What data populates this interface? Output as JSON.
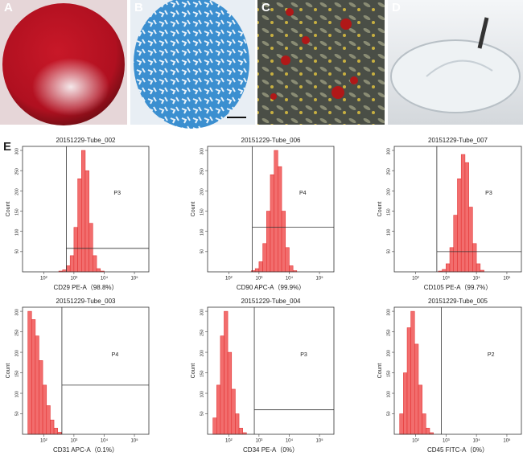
{
  "panels": [
    "A",
    "B",
    "C",
    "D",
    "E"
  ],
  "chart_data": [
    {
      "type": "histogram",
      "title": "20151229-Tube_002",
      "xlabel": "CD29 PE-A（98.8%）",
      "ylabel": "Count",
      "color": "#f26d6d",
      "log_x": true,
      "xlim": [
        20,
        300000
      ],
      "xticks": [
        {
          "value": 100,
          "label": "10²"
        },
        {
          "value": 1000,
          "label": "10³"
        },
        {
          "value": 10000,
          "label": "10⁴"
        },
        {
          "value": 100000,
          "label": "10⁵"
        }
      ],
      "ylim": [
        0,
        310
      ],
      "yticks": [
        50,
        100,
        150,
        200,
        250,
        300
      ],
      "bins": [
        316,
        422,
        562,
        750,
        1000,
        1334,
        1778,
        2371,
        3162,
        4217,
        5623,
        7499,
        10000
      ],
      "values": [
        2,
        5,
        15,
        40,
        110,
        230,
        300,
        250,
        120,
        40,
        8,
        2
      ],
      "gate": {
        "label": "P3",
        "x": 560,
        "y": 58
      }
    },
    {
      "type": "histogram",
      "title": "20151229-Tube_006",
      "xlabel": "CD90 APC-A（99.9%）",
      "ylabel": "Count",
      "color": "#f26d6d",
      "log_x": true,
      "xlim": [
        20,
        300000
      ],
      "xticks": [
        {
          "value": 100,
          "label": "10²"
        },
        {
          "value": 1000,
          "label": "10³"
        },
        {
          "value": 10000,
          "label": "10⁴"
        },
        {
          "value": 100000,
          "label": "10⁵"
        }
      ],
      "ylim": [
        0,
        310
      ],
      "yticks": [
        50,
        100,
        150,
        200,
        250,
        300
      ],
      "bins": [
        562,
        750,
        1000,
        1334,
        1778,
        2371,
        3162,
        4217,
        5623,
        7499,
        10000,
        13335,
        17783
      ],
      "values": [
        3,
        8,
        25,
        70,
        150,
        240,
        300,
        260,
        150,
        60,
        15,
        3
      ],
      "gate": {
        "label": "P4",
        "x": 600,
        "y": 110
      }
    },
    {
      "type": "histogram",
      "title": "20151229-Tube_007",
      "xlabel": "CD105 PE-A（99.7%）",
      "ylabel": "Count",
      "color": "#f26d6d",
      "log_x": true,
      "xlim": [
        20,
        300000
      ],
      "xticks": [
        {
          "value": 100,
          "label": "10²"
        },
        {
          "value": 1000,
          "label": "10³"
        },
        {
          "value": 10000,
          "label": "10⁴"
        },
        {
          "value": 100000,
          "label": "10⁵"
        }
      ],
      "ylim": [
        0,
        310
      ],
      "yticks": [
        50,
        100,
        150,
        200,
        250,
        300
      ],
      "bins": [
        562,
        750,
        1000,
        1334,
        1778,
        2371,
        3162,
        4217,
        5623,
        7499,
        10000,
        13335,
        17783
      ],
      "values": [
        2,
        6,
        20,
        60,
        140,
        230,
        290,
        270,
        160,
        70,
        20,
        4
      ],
      "gate": {
        "label": "P3",
        "x": 500,
        "y": 50
      }
    },
    {
      "type": "histogram",
      "title": "20151229-Tube_003",
      "xlabel": "CD31 APC-A（0.1%）",
      "ylabel": "Count",
      "color": "#f26d6d",
      "log_x": true,
      "xlim": [
        20,
        300000
      ],
      "xticks": [
        {
          "value": 100,
          "label": "10²"
        },
        {
          "value": 1000,
          "label": "10³"
        },
        {
          "value": 10000,
          "label": "10⁴"
        },
        {
          "value": 100000,
          "label": "10⁵"
        }
      ],
      "ylim": [
        0,
        310
      ],
      "yticks": [
        50,
        100,
        150,
        200,
        250,
        300
      ],
      "bins": [
        30,
        40,
        53,
        70,
        93,
        124,
        165,
        219,
        291,
        387
      ],
      "values": [
        300,
        280,
        240,
        180,
        120,
        70,
        35,
        15,
        5
      ],
      "gate": {
        "label": "P4",
        "x": 400,
        "y": 120
      }
    },
    {
      "type": "histogram",
      "title": "20151229-Tube_004",
      "xlabel": "CD34 PE-A（0%）",
      "ylabel": "Count",
      "color": "#f26d6d",
      "log_x": true,
      "xlim": [
        20,
        300000
      ],
      "xticks": [
        {
          "value": 100,
          "label": "10²"
        },
        {
          "value": 1000,
          "label": "10³"
        },
        {
          "value": 10000,
          "label": "10⁴"
        },
        {
          "value": 100000,
          "label": "10⁵"
        }
      ],
      "ylim": [
        0,
        310
      ],
      "yticks": [
        50,
        100,
        150,
        200,
        250,
        300
      ],
      "bins": [
        30,
        40,
        53,
        70,
        93,
        124,
        165,
        219,
        291,
        387
      ],
      "values": [
        40,
        120,
        240,
        300,
        200,
        110,
        50,
        15,
        4
      ],
      "gate": {
        "label": "P3",
        "x": 700,
        "y": 60
      }
    },
    {
      "type": "histogram",
      "title": "20151229-Tube_005",
      "xlabel": "CD45 FITC-A（0%）",
      "ylabel": "Count",
      "color": "#f26d6d",
      "log_x": true,
      "xlim": [
        20,
        300000
      ],
      "xticks": [
        {
          "value": 100,
          "label": "10²"
        },
        {
          "value": 1000,
          "label": "10³"
        },
        {
          "value": 10000,
          "label": "10⁴"
        },
        {
          "value": 100000,
          "label": "10⁵"
        }
      ],
      "ylim": [
        0,
        310
      ],
      "yticks": [
        50,
        100,
        150,
        200,
        250,
        300
      ],
      "bins": [
        30,
        40,
        53,
        70,
        93,
        124,
        165,
        219,
        291,
        387
      ],
      "values": [
        50,
        150,
        260,
        300,
        220,
        120,
        50,
        15,
        4
      ],
      "gate": {
        "label": "P2",
        "x": 700
      }
    }
  ]
}
